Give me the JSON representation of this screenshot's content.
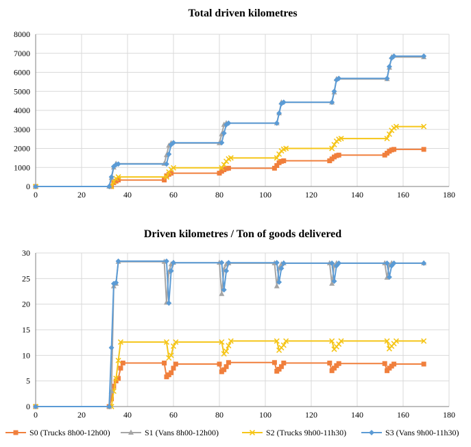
{
  "chart_data": [
    {
      "type": "line",
      "title": "Total driven kilometres",
      "xlabel": "",
      "ylabel": "",
      "xlim": [
        0,
        180
      ],
      "ylim": [
        0,
        8000
      ],
      "x_ticks": [
        0,
        20,
        40,
        60,
        80,
        100,
        120,
        140,
        160,
        180
      ],
      "y_ticks": [
        0,
        1000,
        2000,
        3000,
        4000,
        5000,
        6000,
        7000,
        8000
      ],
      "grid": true,
      "series": [
        {
          "name": "S0 (Trucks 8h00-12h00)",
          "color": "#F07F3C",
          "marker": "square",
          "x": [
            0,
            33,
            34,
            35,
            36,
            56,
            57,
            58,
            59,
            80,
            81,
            82,
            83,
            84,
            104,
            105,
            106,
            107,
            108,
            128,
            129,
            130,
            131,
            132,
            152,
            153,
            154,
            155,
            156,
            169
          ],
          "y": [
            0,
            0,
            200,
            280,
            340,
            340,
            560,
            640,
            700,
            700,
            800,
            880,
            940,
            960,
            960,
            1100,
            1250,
            1320,
            1350,
            1350,
            1450,
            1550,
            1620,
            1650,
            1650,
            1750,
            1850,
            1920,
            1950,
            1950
          ]
        },
        {
          "name": "S1 (Vans 8h00-12h00)",
          "color": "#A5A5A5",
          "marker": "triangle",
          "x": [
            0,
            32,
            33,
            34,
            35,
            56,
            57,
            58,
            59,
            80,
            81,
            82,
            83,
            105,
            106,
            107,
            129,
            130,
            131,
            153,
            154,
            155,
            169
          ],
          "y": [
            0,
            0,
            450,
            1000,
            1200,
            1200,
            1650,
            2150,
            2280,
            2280,
            2750,
            3250,
            3330,
            3330,
            3850,
            4420,
            4420,
            4950,
            5650,
            5650,
            6250,
            6800,
            6800
          ]
        },
        {
          "name": "S2 (Trucks 9h00-11h30)",
          "color": "#F5C518",
          "marker": "x",
          "x": [
            0,
            33,
            34,
            35,
            36,
            57,
            58,
            59,
            60,
            81,
            82,
            83,
            84,
            85,
            105,
            106,
            107,
            108,
            109,
            129,
            130,
            131,
            132,
            133,
            153,
            154,
            155,
            156,
            157,
            169
          ],
          "y": [
            0,
            0,
            250,
            420,
            500,
            500,
            760,
            900,
            980,
            980,
            1150,
            1320,
            1450,
            1500,
            1500,
            1700,
            1870,
            1960,
            2000,
            2000,
            2200,
            2380,
            2480,
            2520,
            2520,
            2750,
            2950,
            3080,
            3150,
            3150
          ]
        },
        {
          "name": "S3 (Vans 9h00-11h30)",
          "color": "#5B9BD5",
          "marker": "diamond",
          "x": [
            0,
            32,
            33,
            34,
            35,
            36,
            57,
            58,
            59,
            60,
            81,
            82,
            83,
            84,
            105,
            106,
            107,
            108,
            129,
            130,
            131,
            132,
            153,
            154,
            155,
            156,
            169
          ],
          "y": [
            0,
            0,
            500,
            1050,
            1150,
            1180,
            1180,
            1700,
            2200,
            2300,
            2300,
            2800,
            3250,
            3330,
            3330,
            3850,
            4350,
            4430,
            4430,
            5000,
            5600,
            5680,
            5680,
            6300,
            6750,
            6850,
            6850
          ]
        }
      ]
    },
    {
      "type": "line",
      "title": "Driven kilometres / Ton of goods delivered",
      "xlabel": "",
      "ylabel": "",
      "xlim": [
        0,
        180
      ],
      "ylim": [
        0,
        30
      ],
      "x_ticks": [
        0,
        20,
        40,
        60,
        80,
        100,
        120,
        140,
        160,
        180
      ],
      "y_ticks": [
        0,
        5,
        10,
        15,
        20,
        25,
        30
      ],
      "grid": true,
      "series": [
        {
          "name": "S0 (Trucks 8h00-12h00)",
          "color": "#F07F3C",
          "marker": "square",
          "x": [
            0,
            32,
            33,
            34,
            35,
            36,
            37,
            38,
            56,
            57,
            58,
            59,
            60,
            61,
            80,
            81,
            82,
            83,
            84,
            104,
            105,
            106,
            107,
            108,
            128,
            129,
            130,
            131,
            132,
            152,
            153,
            154,
            155,
            156,
            169
          ],
          "y": [
            0,
            0,
            1.5,
            4.0,
            5.0,
            5.5,
            7.5,
            8.5,
            8.5,
            5.8,
            6.2,
            6.6,
            7.5,
            8.3,
            8.3,
            6.8,
            7.2,
            7.8,
            8.6,
            8.6,
            6.9,
            7.3,
            7.8,
            8.5,
            8.5,
            7.0,
            7.5,
            8.0,
            8.4,
            8.4,
            7.0,
            7.5,
            7.9,
            8.3,
            8.3
          ]
        },
        {
          "name": "S1 (Vans 8h00-12h00)",
          "color": "#A5A5A5",
          "marker": "triangle",
          "x": [
            0,
            32,
            33,
            34,
            35,
            36,
            56,
            57,
            58,
            59,
            60,
            80,
            81,
            82,
            83,
            84,
            104,
            105,
            106,
            107,
            108,
            128,
            129,
            130,
            131,
            152,
            153,
            154,
            155,
            169
          ],
          "y": [
            0,
            0,
            3.0,
            23.5,
            24.0,
            28.3,
            28.3,
            20.3,
            26.3,
            27.8,
            28.1,
            28.1,
            22.0,
            26.8,
            27.8,
            28.0,
            28.0,
            23.5,
            27.0,
            27.8,
            28.0,
            28.0,
            24.0,
            27.5,
            28.0,
            28.0,
            25.2,
            27.6,
            28.0,
            28.0
          ]
        },
        {
          "name": "S2 (Trucks 9h00-11h30)",
          "color": "#F5C518",
          "marker": "x",
          "x": [
            0,
            33,
            34,
            35,
            36,
            37,
            57,
            58,
            59,
            60,
            61,
            81,
            82,
            83,
            84,
            85,
            105,
            106,
            107,
            108,
            109,
            129,
            130,
            131,
            132,
            133,
            153,
            154,
            155,
            156,
            157,
            169
          ],
          "y": [
            0,
            0,
            3.0,
            5.5,
            9.0,
            12.6,
            12.6,
            9.5,
            10.0,
            11.8,
            12.6,
            12.6,
            10.3,
            10.8,
            11.9,
            12.8,
            12.8,
            11.0,
            11.5,
            12.0,
            12.8,
            12.8,
            11.2,
            11.7,
            12.2,
            12.8,
            12.8,
            11.3,
            11.8,
            12.3,
            12.8,
            12.8
          ]
        },
        {
          "name": "S3 (Vans 9h00-11h30)",
          "color": "#5B9BD5",
          "marker": "diamond",
          "x": [
            0,
            32,
            33,
            34,
            35,
            36,
            57,
            58,
            59,
            60,
            81,
            82,
            83,
            84,
            105,
            106,
            107,
            108,
            129,
            130,
            131,
            132,
            153,
            154,
            155,
            156,
            169
          ],
          "y": [
            0,
            0,
            11.5,
            24.0,
            24.2,
            28.4,
            28.4,
            20.2,
            26.5,
            28.1,
            28.1,
            22.8,
            26.5,
            28.1,
            28.1,
            24.3,
            27.0,
            28.0,
            28.0,
            24.5,
            27.5,
            28.0,
            28.0,
            25.3,
            27.5,
            28.0,
            28.0
          ]
        }
      ]
    }
  ]
}
